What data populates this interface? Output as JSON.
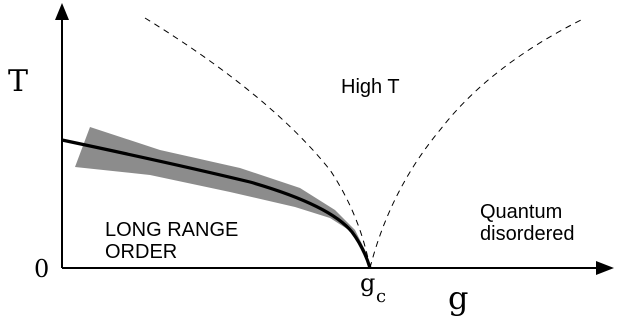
{
  "axes": {
    "y_label": "T",
    "x_label": "g",
    "origin_label": "0",
    "critical_point_label": "g",
    "critical_point_subscript": "c"
  },
  "regions": {
    "high_t": "High T",
    "long_range_order_line1": "LONG RANGE",
    "long_range_order_line2": "ORDER",
    "quantum_disordered_line1": "Quantum",
    "quantum_disordered_line2": "disordered"
  },
  "colors": {
    "axis": "#000000",
    "phase_boundary": "#000000",
    "uncertainty_band": "#8c8c8c",
    "crossover_lines": "#000000",
    "background": "#ffffff"
  }
}
